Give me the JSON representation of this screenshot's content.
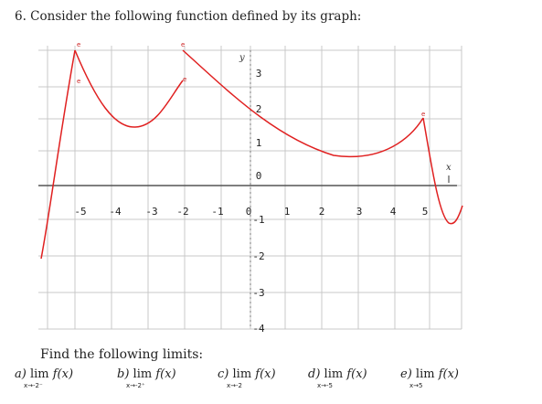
{
  "question": {
    "title": "6. Consider the following function defined by its graph:"
  },
  "graph": {
    "x_axis_label": "x",
    "y_axis_label": "y",
    "x_ticks": [
      "-5",
      "-4",
      "-3",
      "-2",
      "-1",
      "0",
      "1",
      "2",
      "3",
      "4",
      "5"
    ],
    "y_ticks": [
      "3",
      "2",
      "1",
      "0",
      "-1",
      "-2",
      "-3",
      "-4"
    ],
    "point_marker": "e",
    "colors": {
      "curve": "#e02020",
      "grid": "#c8c8c8",
      "axis": "#555555"
    }
  },
  "instructions": "Find the following limits:",
  "limits": [
    {
      "letter": "a)",
      "text": "lim",
      "func": "f(x)",
      "approach": "x→-2⁻"
    },
    {
      "letter": "b)",
      "text": "lim",
      "func": "f(x)",
      "approach": "x→-2⁺"
    },
    {
      "letter": "c)",
      "text": "lim",
      "func": "f(x)",
      "approach": "x→-2"
    },
    {
      "letter": "d)",
      "text": "lim",
      "func": "f(x)",
      "approach": "x→-5"
    },
    {
      "letter": "e)",
      "text": "lim",
      "func": "f(x)",
      "approach": "x→5"
    }
  ]
}
